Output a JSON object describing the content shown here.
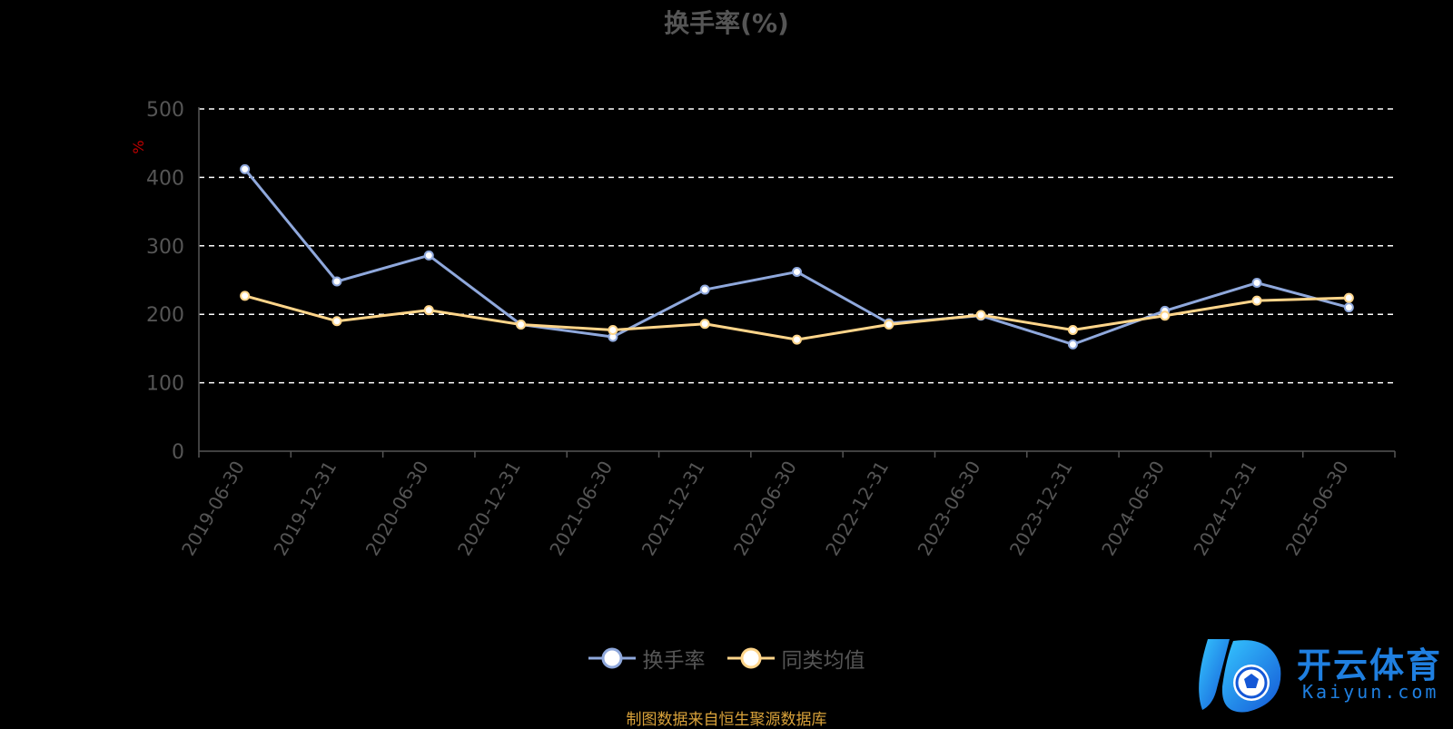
{
  "chart_data": {
    "type": "line",
    "title": "换手率(%)",
    "ylabel": "%",
    "ylim": [
      0,
      500
    ],
    "yticks": [
      0,
      100,
      200,
      300,
      400,
      500
    ],
    "grid": true,
    "legend_position": "bottom-center",
    "categories": [
      "2019-06-30",
      "2019-12-31",
      "2020-06-30",
      "2020-12-31",
      "2021-06-30",
      "2021-12-31",
      "2022-06-30",
      "2022-12-31",
      "2023-06-30",
      "2023-12-31",
      "2024-06-30",
      "2024-12-31",
      "2025-06-30"
    ],
    "series": [
      {
        "name": "换手率",
        "color": "#8fa8dc",
        "values": [
          412,
          248,
          286,
          185,
          167,
          236,
          262,
          187,
          198,
          156,
          205,
          246,
          210
        ]
      },
      {
        "name": "同类均值",
        "color": "#ffd58a",
        "values": [
          227,
          190,
          206,
          185,
          177,
          186,
          163,
          185,
          199,
          177,
          198,
          220,
          224
        ]
      }
    ]
  },
  "source_note": "制图数据来自恒生聚源数据库",
  "watermark": {
    "text": "开云体育",
    "sub": "Kaiyun.com"
  }
}
